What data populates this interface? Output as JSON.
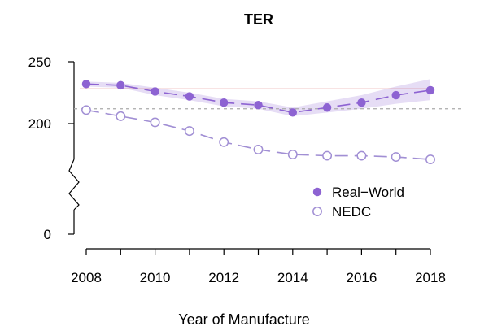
{
  "chart_data": {
    "type": "line",
    "title": "TER",
    "xlabel": "Year of Manufacture",
    "ylabel": "",
    "x": [
      2008,
      2009,
      2010,
      2011,
      2012,
      2013,
      2014,
      2015,
      2016,
      2017,
      2018
    ],
    "x_ticks": [
      "2008",
      "2010",
      "2012",
      "2014",
      "2016",
      "2018"
    ],
    "y_ticks": [
      "0",
      "200",
      "250"
    ],
    "y_axis_break": true,
    "ylim": [
      0,
      250
    ],
    "grid": false,
    "legend_position": "right",
    "series": [
      {
        "name": "Real−World",
        "marker": "filled-circle",
        "color": "#8d63d2",
        "values": [
          232,
          231,
          226,
          222,
          217,
          215,
          209,
          213,
          217,
          223,
          227
        ],
        "band_lower": [
          230,
          229,
          223,
          219,
          214,
          212,
          206,
          209,
          212,
          216,
          219
        ],
        "band_upper": [
          234,
          233,
          229,
          225,
          220,
          218,
          213,
          218,
          223,
          230,
          236
        ]
      },
      {
        "name": "NEDC",
        "marker": "open-circle",
        "color": "#a18fd4",
        "values": [
          211,
          206,
          201,
          194,
          185,
          179,
          175,
          174,
          174,
          173,
          171
        ]
      }
    ],
    "reference_lines": [
      {
        "value": 228,
        "color": "#cc2222",
        "style": "solid"
      },
      {
        "value": 212,
        "color": "#aaaaaa",
        "style": "dashed"
      }
    ]
  }
}
